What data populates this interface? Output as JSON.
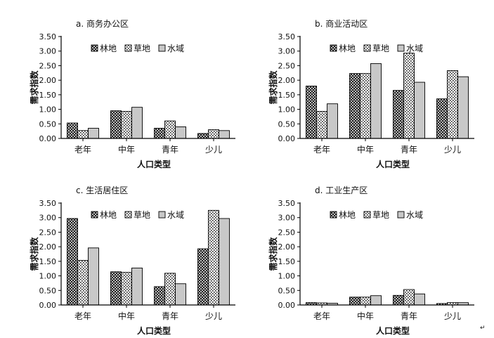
{
  "figure": {
    "footnote_mark": "↵"
  },
  "legend_labels": [
    "林地",
    "草地",
    "水域"
  ],
  "chart_data": [
    {
      "type": "bar",
      "panel_title": "a. 商务办公区",
      "categories": [
        "老年",
        "中年",
        "青年",
        "少儿"
      ],
      "series": [
        {
          "name": "林地",
          "values": [
            0.53,
            0.95,
            0.35,
            0.17
          ]
        },
        {
          "name": "草地",
          "values": [
            0.27,
            0.93,
            0.6,
            0.3
          ]
        },
        {
          "name": "水域",
          "values": [
            0.35,
            1.07,
            0.4,
            0.27
          ]
        }
      ],
      "xlabel": "人口类型",
      "ylabel": "需求指数",
      "ylim": [
        0,
        3.5
      ],
      "yticks": [
        "0.00",
        "0.50",
        "1.00",
        "1.50",
        "2.00",
        "2.50",
        "3.00",
        "3.50"
      ],
      "grid": false,
      "legend_position": "top"
    },
    {
      "type": "bar",
      "panel_title": "b. 商业活动区",
      "categories": [
        "老年",
        "中年",
        "青年",
        "少儿"
      ],
      "series": [
        {
          "name": "林地",
          "values": [
            1.8,
            2.23,
            1.65,
            1.36
          ]
        },
        {
          "name": "草地",
          "values": [
            0.93,
            2.23,
            2.93,
            2.33
          ]
        },
        {
          "name": "水域",
          "values": [
            1.19,
            2.57,
            1.93,
            2.12
          ]
        }
      ],
      "xlabel": "人口类型",
      "ylabel": "需求指数",
      "ylim": [
        0,
        3.5
      ],
      "yticks": [
        "0.00",
        "0.50",
        "1.00",
        "1.50",
        "2.00",
        "2.50",
        "3.00",
        "3.50"
      ],
      "grid": false,
      "legend_position": "top"
    },
    {
      "type": "bar",
      "panel_title": "c. 生活居住区",
      "categories": [
        "老年",
        "中年",
        "青年",
        "少儿"
      ],
      "series": [
        {
          "name": "林地",
          "values": [
            2.97,
            1.14,
            0.63,
            1.93
          ]
        },
        {
          "name": "草地",
          "values": [
            1.53,
            1.12,
            1.09,
            3.25
          ]
        },
        {
          "name": "水域",
          "values": [
            1.96,
            1.27,
            0.73,
            2.97
          ]
        }
      ],
      "xlabel": "人口类型",
      "ylabel": "需求指数",
      "ylim": [
        0,
        3.5
      ],
      "yticks": [
        "0.00",
        "0.50",
        "1.00",
        "1.50",
        "2.00",
        "2.50",
        "3.00",
        "3.50"
      ],
      "grid": false,
      "legend_position": "top"
    },
    {
      "type": "bar",
      "panel_title": "d. 工业生产区",
      "categories": [
        "老年",
        "中年",
        "青年",
        "少儿"
      ],
      "series": [
        {
          "name": "林地",
          "values": [
            0.08,
            0.27,
            0.33,
            0.05
          ]
        },
        {
          "name": "草地",
          "values": [
            0.07,
            0.27,
            0.53,
            0.08
          ]
        },
        {
          "name": "水域",
          "values": [
            0.06,
            0.32,
            0.38,
            0.08
          ]
        }
      ],
      "xlabel": "人口类型",
      "ylabel": "需求指数",
      "ylim": [
        0,
        3.5
      ],
      "yticks": [
        "0.00",
        "0.50",
        "1.00",
        "1.50",
        "2.00",
        "2.50",
        "3.00",
        "3.50"
      ],
      "grid": false,
      "legend_position": "top"
    }
  ]
}
